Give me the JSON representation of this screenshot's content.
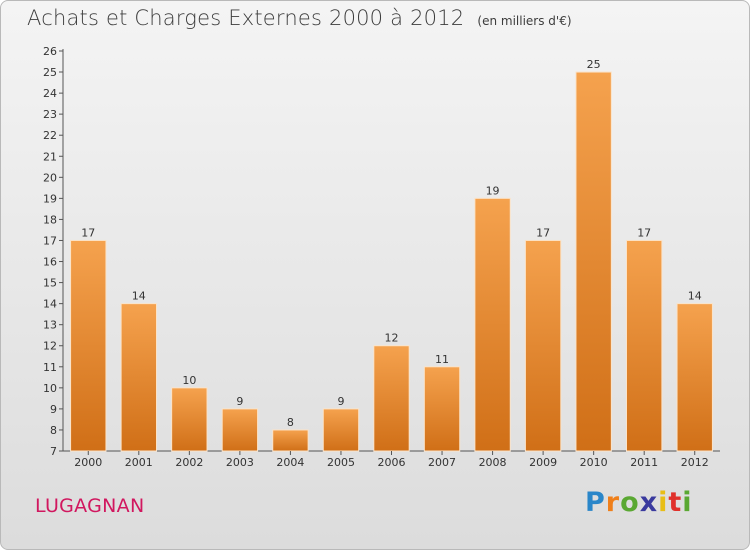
{
  "title": "Achats et Charges Externes 2000 à 2012",
  "subtitle": "(en milliers d'€)",
  "commune": "LUGAGNAN",
  "logo": {
    "text": "Proxiti",
    "letter_colors": [
      "#2a86c9",
      "#ef7f1a",
      "#5aa832",
      "#3a3a9e",
      "#e8be16",
      "#e0312b",
      "#5aa832"
    ]
  },
  "colors": {
    "bar_top": "#f5a24e",
    "bar_bottom": "#d06f17",
    "title": "#3d3d3d",
    "commune": "#d1175f"
  },
  "chart_data": {
    "type": "bar",
    "categories": [
      "2000",
      "2001",
      "2002",
      "2003",
      "2004",
      "2005",
      "2006",
      "2007",
      "2008",
      "2009",
      "2010",
      "2011",
      "2012"
    ],
    "values": [
      17,
      14,
      10,
      9,
      8,
      9,
      12,
      11,
      19,
      17,
      25,
      17,
      14
    ],
    "title": "Achats et Charges Externes 2000 à 2012",
    "ylim": [
      7,
      26
    ],
    "yticks": [
      7,
      8,
      9,
      10,
      11,
      12,
      13,
      14,
      15,
      16,
      17,
      18,
      19,
      20,
      21,
      22,
      23,
      24,
      25,
      26
    ],
    "grid": false
  }
}
